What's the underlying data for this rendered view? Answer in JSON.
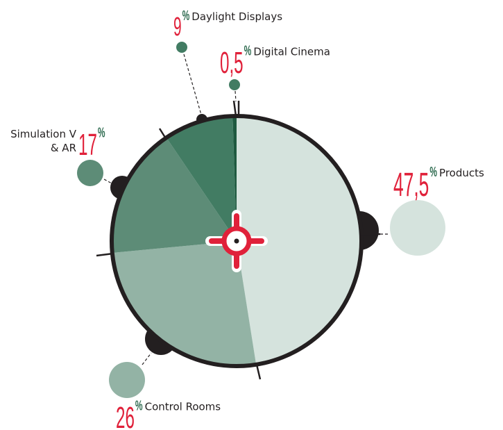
{
  "chart_data": {
    "type": "pie",
    "categories": [
      "Products",
      "Control Rooms",
      "Simulation V & AR",
      "Daylight Displays",
      "Digital Cinema"
    ],
    "values": [
      47.5,
      26,
      17,
      9,
      0.5
    ],
    "value_labels": [
      "47,5",
      "26",
      "17",
      "9",
      "0,5"
    ],
    "percent_sign": "%",
    "colors": [
      "#d5e3dd",
      "#93b3a5",
      "#5d8c77",
      "#427c63",
      "#1f5a40"
    ]
  }
}
